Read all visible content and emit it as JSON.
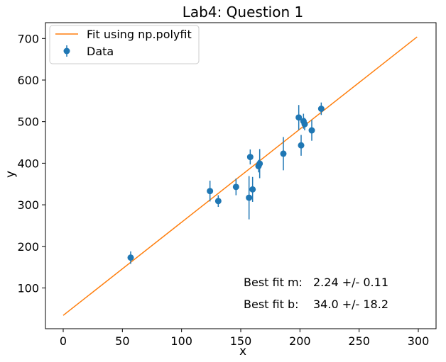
{
  "chart_data": {
    "type": "scatter",
    "title": "Lab4: Question 1",
    "xlabel": "x",
    "ylabel": "y",
    "xlim": [
      -15,
      315
    ],
    "ylim": [
      2,
      738
    ],
    "xticks": [
      0,
      50,
      100,
      150,
      200,
      250,
      300
    ],
    "yticks": [
      100,
      200,
      300,
      400,
      500,
      600,
      700
    ],
    "grid": false,
    "legend_position": "top-left",
    "colors": {
      "data": "#1f77b4",
      "fit": "#ff7f0e"
    },
    "series": [
      {
        "name": "Fit using np.polyfit",
        "kind": "line",
        "x": [
          0,
          299
        ],
        "y": [
          34.0,
          703.8
        ]
      },
      {
        "name": "Data",
        "kind": "errorbar",
        "points": [
          {
            "x": 57,
            "y": 173,
            "err": 15
          },
          {
            "x": 124,
            "y": 333,
            "err": 25
          },
          {
            "x": 131,
            "y": 309,
            "err": 14
          },
          {
            "x": 146,
            "y": 343,
            "err": 20
          },
          {
            "x": 157,
            "y": 317,
            "err": 52
          },
          {
            "x": 158,
            "y": 415,
            "err": 18
          },
          {
            "x": 160,
            "y": 337,
            "err": 30
          },
          {
            "x": 165,
            "y": 393,
            "err": 15
          },
          {
            "x": 166,
            "y": 399,
            "err": 35
          },
          {
            "x": 186,
            "y": 423,
            "err": 40
          },
          {
            "x": 199,
            "y": 510,
            "err": 30
          },
          {
            "x": 201,
            "y": 443,
            "err": 25
          },
          {
            "x": 203,
            "y": 501,
            "err": 18
          },
          {
            "x": 204,
            "y": 494,
            "err": 15
          },
          {
            "x": 210,
            "y": 479,
            "err": 25
          },
          {
            "x": 218,
            "y": 531,
            "err": 15
          }
        ]
      }
    ],
    "annotations": [
      {
        "label": "Best fit m:",
        "value": "2.24 +/- 0.11"
      },
      {
        "label": "Best fit b:",
        "value": "34.0 +/- 18.2"
      }
    ]
  }
}
